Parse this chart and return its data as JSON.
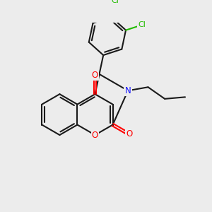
{
  "bg_color": "#ececec",
  "bond_color": "#1a1a1a",
  "bond_width": 1.5,
  "atom_colors": {
    "O": "#ff0000",
    "N": "#1010ff",
    "Cl": "#22bb00",
    "C": "#1a1a1a"
  },
  "font_size_atom": 8.5,
  "font_size_cl": 8.0,
  "scale": 1.0
}
